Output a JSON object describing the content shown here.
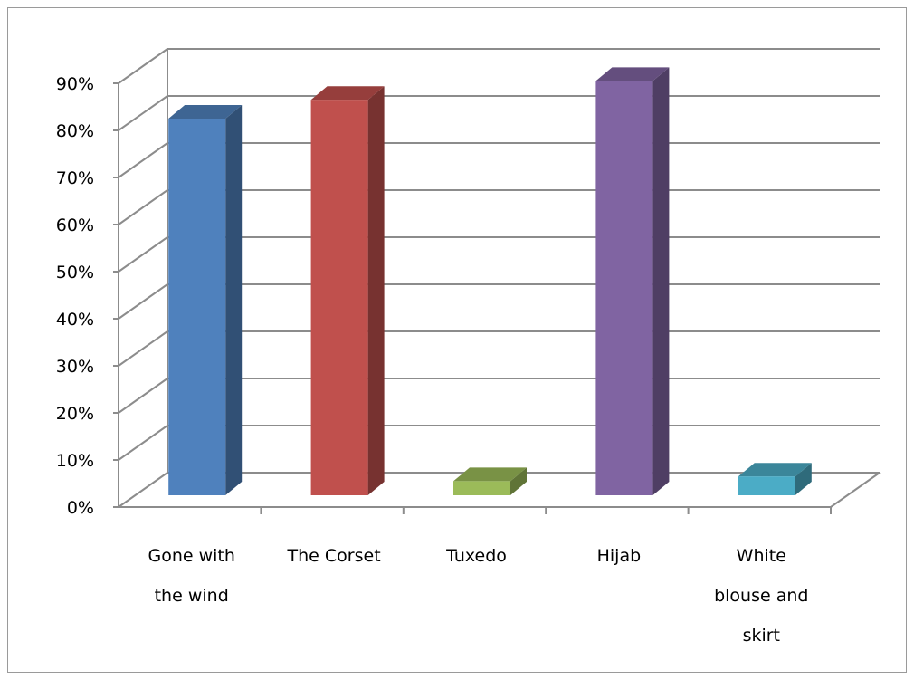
{
  "chart_data": {
    "type": "bar",
    "style": "3d-column",
    "categories": [
      [
        "Gone with",
        "the wind"
      ],
      [
        "The Corset"
      ],
      [
        "Tuxedo"
      ],
      [
        "Hijab"
      ],
      [
        "White",
        "blouse and",
        "skirt"
      ]
    ],
    "values": [
      80,
      84,
      3,
      88,
      4
    ],
    "colors": [
      "#4F81BD",
      "#C0504D",
      "#9BBB59",
      "#8064A2",
      "#4BACC6"
    ],
    "ylim": [
      0,
      90
    ],
    "yticks": [
      "0%",
      "10%",
      "20%",
      "30%",
      "40%",
      "50%",
      "60%",
      "70%",
      "80%",
      "90%"
    ],
    "grid": true,
    "legend": "none",
    "title": "",
    "xlabel": "",
    "ylabel": ""
  }
}
